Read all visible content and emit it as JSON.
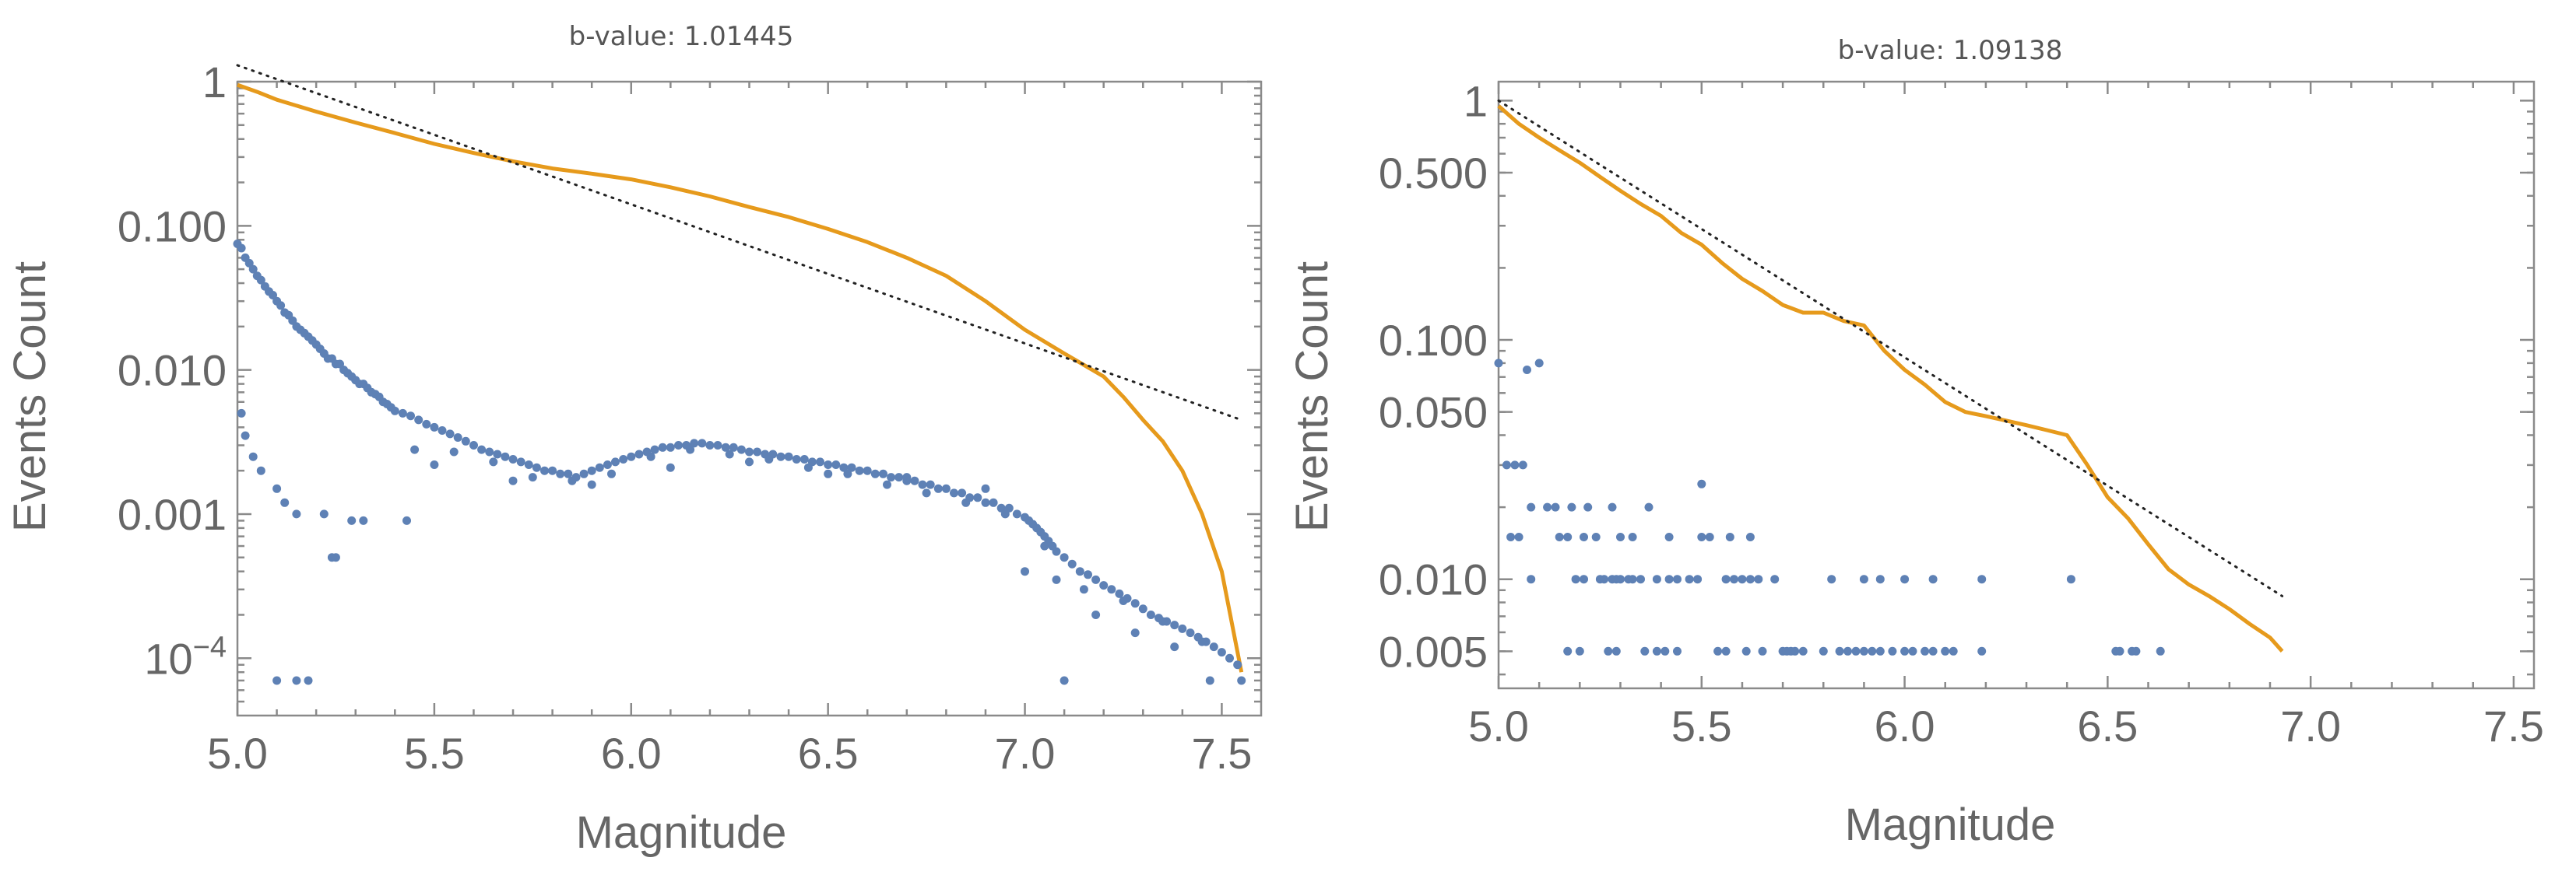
{
  "colors": {
    "cdf": "#E69A1C",
    "counts": "#5E81B5",
    "fit": "#222222",
    "axis": "#8a8a8a",
    "text": "#666666"
  },
  "chart_data": [
    {
      "type": "scatter",
      "title": "b-value: 1.01445",
      "xlabel": "Magnitude",
      "ylabel": "Events Count",
      "xscale": "linear",
      "yscale": "log",
      "xlim": [
        5.0,
        7.6
      ],
      "ylim": [
        4e-05,
        1.0
      ],
      "xticks": [
        5.0,
        5.5,
        6.0,
        6.5,
        7.0,
        7.5
      ],
      "xtick_labels": [
        "5.0",
        "5.5",
        "6.0",
        "6.5",
        "7.0",
        "7.5"
      ],
      "yticks": [
        1,
        0.1,
        0.01,
        0.001,
        0.0001
      ],
      "ytick_labels": [
        "1",
        "0.100",
        "0.010",
        "0.001",
        "10^-4"
      ],
      "series": [
        {
          "name": "cumulative",
          "kind": "line",
          "x": [
            5.0,
            5.05,
            5.1,
            5.2,
            5.3,
            5.4,
            5.5,
            5.6,
            5.7,
            5.8,
            5.9,
            6.0,
            6.1,
            6.2,
            6.3,
            6.4,
            6.5,
            6.6,
            6.7,
            6.8,
            6.9,
            7.0,
            7.1,
            7.2,
            7.25,
            7.3,
            7.35,
            7.4,
            7.45,
            7.5,
            7.55
          ],
          "y": [
            0.95,
            0.85,
            0.75,
            0.62,
            0.52,
            0.44,
            0.37,
            0.32,
            0.28,
            0.25,
            0.23,
            0.21,
            0.185,
            0.16,
            0.135,
            0.115,
            0.095,
            0.077,
            0.06,
            0.045,
            0.03,
            0.019,
            0.013,
            0.009,
            0.0065,
            0.0045,
            0.0032,
            0.002,
            0.001,
            0.0004,
            8e-05
          ]
        },
        {
          "name": "fit",
          "kind": "dotted-line",
          "x": [
            5.0,
            7.55
          ],
          "y": [
            1.3,
            0.0045
          ]
        },
        {
          "name": "counts",
          "kind": "points",
          "x": [
            5.0,
            5.01,
            5.02,
            5.03,
            5.04,
            5.05,
            5.06,
            5.07,
            5.08,
            5.09,
            5.1,
            5.11,
            5.12,
            5.13,
            5.14,
            5.15,
            5.16,
            5.17,
            5.18,
            5.19,
            5.2,
            5.21,
            5.22,
            5.23,
            5.24,
            5.25,
            5.26,
            5.27,
            5.28,
            5.29,
            5.3,
            5.31,
            5.32,
            5.33,
            5.34,
            5.35,
            5.36,
            5.37,
            5.38,
            5.39,
            5.4,
            5.42,
            5.44,
            5.46,
            5.48,
            5.5,
            5.52,
            5.54,
            5.56,
            5.58,
            5.6,
            5.62,
            5.64,
            5.66,
            5.68,
            5.7,
            5.72,
            5.74,
            5.76,
            5.78,
            5.8,
            5.82,
            5.84,
            5.86,
            5.88,
            5.9,
            5.92,
            5.94,
            5.96,
            5.98,
            6.0,
            6.02,
            6.04,
            6.06,
            6.08,
            6.1,
            6.12,
            6.14,
            6.16,
            6.18,
            6.2,
            6.22,
            6.24,
            6.26,
            6.28,
            6.3,
            6.32,
            6.34,
            6.36,
            6.38,
            6.4,
            6.42,
            6.44,
            6.46,
            6.48,
            6.5,
            6.52,
            6.54,
            6.56,
            6.58,
            6.6,
            6.62,
            6.64,
            6.66,
            6.68,
            6.7,
            6.72,
            6.74,
            6.76,
            6.78,
            6.8,
            6.82,
            6.84,
            6.86,
            6.88,
            6.9,
            6.92,
            6.94,
            6.96,
            6.98,
            7.0,
            7.01,
            7.02,
            7.03,
            7.04,
            7.05,
            7.06,
            7.07,
            7.08,
            7.1,
            7.12,
            7.14,
            7.16,
            7.18,
            7.2,
            7.22,
            7.24,
            7.26,
            7.28,
            7.3,
            7.32,
            7.34,
            7.36,
            7.38,
            7.4,
            7.42,
            7.44,
            7.46,
            7.48,
            7.5,
            7.52,
            7.54,
            5.01,
            5.02,
            5.04,
            5.06,
            5.1,
            5.12,
            5.15,
            5.22,
            5.25,
            5.29,
            5.32,
            5.24,
            5.43,
            5.1,
            5.15,
            5.18,
            7.1,
            7.47,
            7.55,
            5.5,
            5.7,
            5.9,
            6.1,
            6.3,
            6.5,
            6.7,
            6.9,
            7.05,
            7.15,
            7.25,
            7.35,
            7.45,
            5.45,
            5.55,
            5.65,
            5.75,
            5.85,
            5.95,
            6.05,
            6.15,
            6.25,
            6.35,
            6.45,
            6.55,
            6.65,
            6.75,
            6.85,
            6.95,
            7.0,
            7.08,
            7.18,
            7.28,
            7.38
          ],
          "y": [
            0.075,
            0.07,
            0.06,
            0.055,
            0.05,
            0.045,
            0.042,
            0.038,
            0.035,
            0.033,
            0.03,
            0.028,
            0.025,
            0.024,
            0.022,
            0.02,
            0.019,
            0.018,
            0.017,
            0.016,
            0.015,
            0.014,
            0.013,
            0.012,
            0.012,
            0.011,
            0.011,
            0.01,
            0.0095,
            0.009,
            0.0085,
            0.008,
            0.008,
            0.0075,
            0.007,
            0.0068,
            0.0065,
            0.006,
            0.0058,
            0.0055,
            0.0052,
            0.005,
            0.0048,
            0.0045,
            0.0042,
            0.004,
            0.0038,
            0.0036,
            0.0034,
            0.0032,
            0.003,
            0.0028,
            0.0027,
            0.0026,
            0.0025,
            0.0024,
            0.0023,
            0.0022,
            0.0021,
            0.002,
            0.002,
            0.0019,
            0.0019,
            0.0018,
            0.0019,
            0.002,
            0.0021,
            0.0022,
            0.0023,
            0.0024,
            0.0025,
            0.0026,
            0.0027,
            0.0028,
            0.0029,
            0.0029,
            0.003,
            0.003,
            0.0031,
            0.0031,
            0.003,
            0.003,
            0.0029,
            0.0029,
            0.0028,
            0.0027,
            0.0027,
            0.0026,
            0.0026,
            0.0025,
            0.0025,
            0.0024,
            0.0024,
            0.0023,
            0.0023,
            0.0022,
            0.0022,
            0.0021,
            0.0021,
            0.002,
            0.002,
            0.0019,
            0.0019,
            0.0018,
            0.0018,
            0.0017,
            0.0017,
            0.0016,
            0.0016,
            0.0015,
            0.0015,
            0.0014,
            0.0014,
            0.0013,
            0.0013,
            0.0012,
            0.0012,
            0.0011,
            0.0011,
            0.001,
            0.00095,
            0.0009,
            0.00085,
            0.0008,
            0.00075,
            0.0007,
            0.00065,
            0.0006,
            0.00055,
            0.0005,
            0.00045,
            0.0004,
            0.00038,
            0.00035,
            0.00032,
            0.0003,
            0.00028,
            0.00026,
            0.00024,
            0.00022,
            0.0002,
            0.00019,
            0.00018,
            0.00017,
            0.00016,
            0.00015,
            0.00014,
            0.00013,
            0.00012,
            0.00011,
            0.0001,
            9e-05,
            0.005,
            0.0035,
            0.0025,
            0.002,
            0.0015,
            0.0012,
            0.001,
            0.001,
            0.0005,
            0.0009,
            0.0009,
            0.0005,
            0.0009,
            7e-05,
            7e-05,
            7e-05,
            7e-05,
            7e-05,
            7e-05,
            0.0022,
            0.0017,
            0.0016,
            0.0021,
            0.0023,
            0.0019,
            0.0018,
            0.0015,
            0.0006,
            0.0003,
            0.00025,
            0.00018,
            0.00013,
            0.0028,
            0.0027,
            0.0023,
            0.0018,
            0.0017,
            0.0019,
            0.0025,
            0.0028,
            0.0026,
            0.0024,
            0.0021,
            0.0019,
            0.0016,
            0.0014,
            0.0012,
            0.001,
            0.0004,
            0.00035,
            0.0002,
            0.00015,
            0.00012
          ]
        }
      ]
    },
    {
      "type": "scatter",
      "title": "b-value: 1.09138",
      "xlabel": "Magnitude",
      "ylabel": "Events Count",
      "xscale": "linear",
      "yscale": "log",
      "xlim": [
        5.0,
        7.55
      ],
      "ylim": [
        0.0035,
        1.2
      ],
      "xticks": [
        5.0,
        5.5,
        6.0,
        6.5,
        7.0,
        7.5
      ],
      "xtick_labels": [
        "5.0",
        "5.5",
        "6.0",
        "6.5",
        "7.0",
        "7.5"
      ],
      "yticks": [
        1,
        0.5,
        0.1,
        0.05,
        0.01,
        0.005
      ],
      "ytick_labels": [
        "1",
        "0.500",
        "0.100",
        "0.050",
        "0.010",
        "0.005"
      ],
      "series": [
        {
          "name": "cumulative",
          "kind": "line",
          "x": [
            5.0,
            5.05,
            5.1,
            5.15,
            5.2,
            5.25,
            5.3,
            5.35,
            5.4,
            5.45,
            5.5,
            5.55,
            5.6,
            5.65,
            5.7,
            5.75,
            5.8,
            5.85,
            5.9,
            5.95,
            6.0,
            6.05,
            6.1,
            6.15,
            6.2,
            6.25,
            6.3,
            6.35,
            6.4,
            6.45,
            6.5,
            6.55,
            6.6,
            6.65,
            6.7,
            6.75,
            6.8,
            6.85,
            6.9,
            6.93
          ],
          "y": [
            0.95,
            0.8,
            0.7,
            0.62,
            0.55,
            0.48,
            0.42,
            0.37,
            0.33,
            0.28,
            0.25,
            0.21,
            0.18,
            0.16,
            0.14,
            0.13,
            0.13,
            0.12,
            0.115,
            0.09,
            0.075,
            0.065,
            0.055,
            0.05,
            0.048,
            0.046,
            0.044,
            0.042,
            0.04,
            0.03,
            0.022,
            0.018,
            0.014,
            0.011,
            0.0095,
            0.0085,
            0.0075,
            0.0065,
            0.0057,
            0.005
          ]
        },
        {
          "name": "fit",
          "kind": "dotted-line",
          "x": [
            5.0,
            6.93
          ],
          "y": [
            1.0,
            0.0085
          ]
        },
        {
          "name": "counts",
          "kind": "points",
          "x": [
            5.0,
            5.02,
            5.04,
            5.06,
            5.08,
            5.12,
            5.14,
            5.18,
            5.22,
            5.28,
            5.37,
            5.5,
            5.07,
            5.1,
            5.03,
            5.05,
            5.15,
            5.17,
            5.21,
            5.24,
            5.3,
            5.33,
            5.42,
            5.5,
            5.52,
            5.57,
            5.62,
            5.08,
            5.19,
            5.21,
            5.25,
            5.26,
            5.28,
            5.29,
            5.3,
            5.32,
            5.33,
            5.35,
            5.39,
            5.42,
            5.44,
            5.47,
            5.49,
            5.56,
            5.58,
            5.6,
            5.62,
            5.64,
            5.68,
            5.82,
            5.9,
            5.94,
            6.0,
            6.07,
            6.19,
            6.41,
            5.17,
            5.2,
            5.27,
            5.29,
            5.36,
            5.39,
            5.41,
            5.44,
            5.54,
            5.56,
            5.61,
            5.65,
            5.7,
            5.71,
            5.72,
            5.73,
            5.75,
            5.8,
            5.84,
            5.86,
            5.88,
            5.9,
            5.92,
            5.94,
            5.97,
            6.0,
            6.02,
            6.05,
            6.07,
            6.1,
            6.12,
            6.19,
            6.52,
            6.53,
            6.56,
            6.57,
            6.63
          ],
          "y": [
            0.08,
            0.03,
            0.03,
            0.03,
            0.02,
            0.02,
            0.02,
            0.02,
            0.02,
            0.02,
            0.02,
            0.025,
            0.075,
            0.08,
            0.015,
            0.015,
            0.015,
            0.015,
            0.015,
            0.015,
            0.015,
            0.015,
            0.015,
            0.015,
            0.015,
            0.015,
            0.015,
            0.01,
            0.01,
            0.01,
            0.01,
            0.01,
            0.01,
            0.01,
            0.01,
            0.01,
            0.01,
            0.01,
            0.01,
            0.01,
            0.01,
            0.01,
            0.01,
            0.01,
            0.01,
            0.01,
            0.01,
            0.01,
            0.01,
            0.01,
            0.01,
            0.01,
            0.01,
            0.01,
            0.01,
            0.01,
            0.005,
            0.005,
            0.005,
            0.005,
            0.005,
            0.005,
            0.005,
            0.005,
            0.005,
            0.005,
            0.005,
            0.005,
            0.005,
            0.005,
            0.005,
            0.005,
            0.005,
            0.005,
            0.005,
            0.005,
            0.005,
            0.005,
            0.005,
            0.005,
            0.005,
            0.005,
            0.005,
            0.005,
            0.005,
            0.005,
            0.005,
            0.005,
            0.005,
            0.005,
            0.005,
            0.005,
            0.005
          ]
        }
      ]
    }
  ]
}
